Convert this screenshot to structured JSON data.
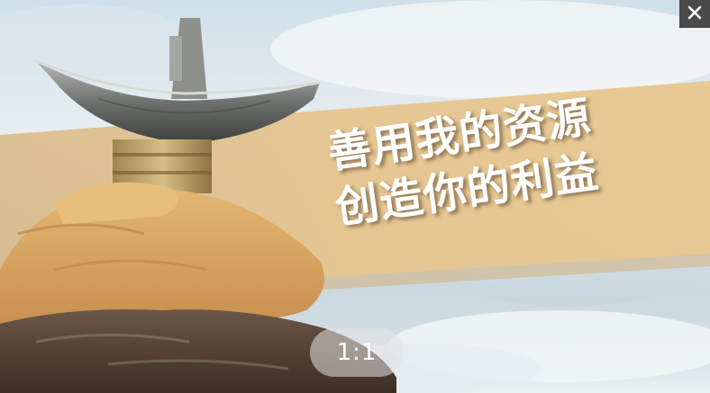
{
  "viewer": {
    "close_icon": "close-icon",
    "zoom_label": "1:1"
  },
  "image": {
    "slogan_line1": "善用我的资源",
    "slogan_line2": "创造你的利益"
  },
  "colors": {
    "close_bg": "#4a4a4a",
    "zoom_bg": "rgba(225,225,225,0.55)",
    "band": "#e7c48a",
    "sky": "#a9c6d8"
  }
}
